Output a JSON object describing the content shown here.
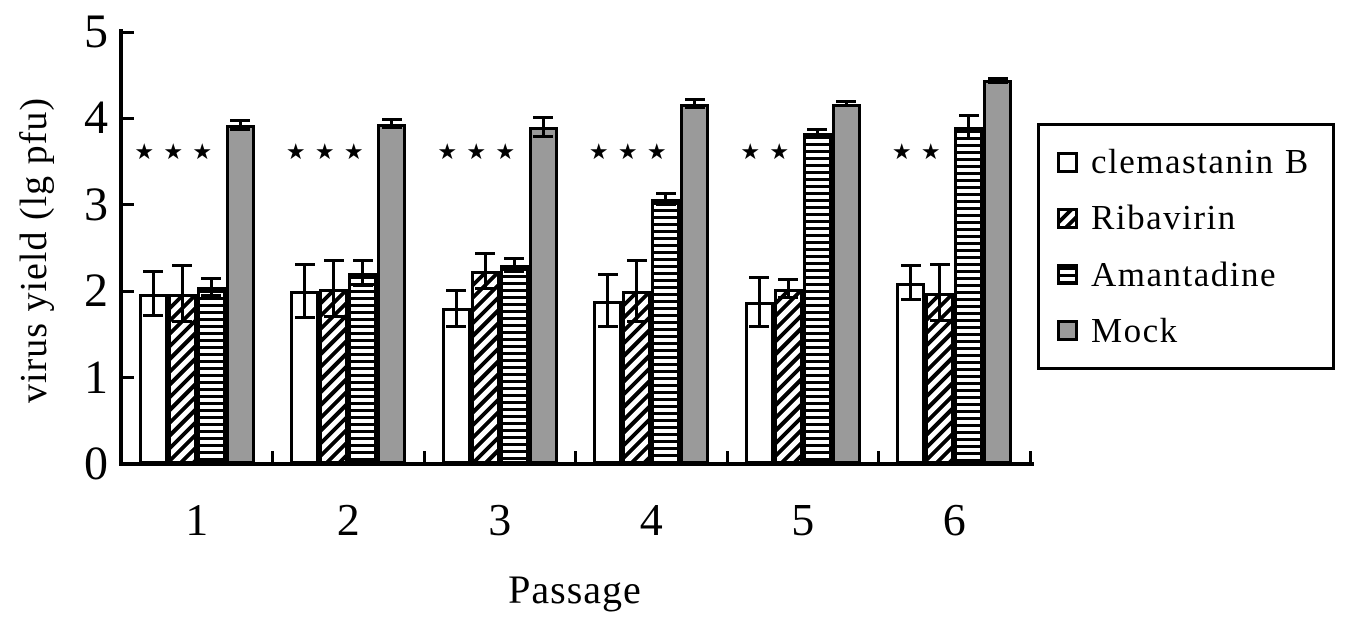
{
  "figure": {
    "background": "#ffffff",
    "bar_outline_color": "#000000",
    "mock_fill_color": "#9a9a9a"
  },
  "chart_data": {
    "type": "bar",
    "title": "",
    "xlabel": "Passage",
    "ylabel": "virus yield (lg pfu)",
    "ylim": [
      0,
      5
    ],
    "yticks": [
      0,
      1,
      2,
      3,
      4,
      5
    ],
    "categories": [
      "1",
      "2",
      "3",
      "4",
      "5",
      "6"
    ],
    "grid": false,
    "legend_position": "right",
    "error_bars": true,
    "series": [
      {
        "name": "clemastanin B",
        "pattern": "solid-white",
        "color": "#ffffff",
        "values": [
          1.97,
          2.0,
          1.8,
          1.89,
          1.87,
          2.1
        ],
        "errors": [
          0.26,
          0.31,
          0.21,
          0.31,
          0.29,
          0.2
        ]
      },
      {
        "name": "Ribavirin",
        "pattern": "diagonal-hatch",
        "color": "#ffffff",
        "values": [
          1.97,
          2.03,
          2.23,
          2.0,
          2.03,
          1.98
        ],
        "errors": [
          0.33,
          0.33,
          0.21,
          0.36,
          0.11,
          0.33
        ]
      },
      {
        "name": "Amantadine",
        "pattern": "horizontal-stripes",
        "color": "#ffffff",
        "values": [
          2.05,
          2.21,
          2.3,
          3.07,
          3.83,
          3.9
        ],
        "errors": [
          0.1,
          0.15,
          0.08,
          0.07,
          0.05,
          0.14
        ]
      },
      {
        "name": "Mock",
        "pattern": "solid-gray",
        "color": "#9a9a9a",
        "values": [
          3.92,
          3.94,
          3.9,
          4.17,
          4.17,
          4.44
        ],
        "errors": [
          0.06,
          0.05,
          0.12,
          0.05,
          0.03,
          0.03
        ]
      }
    ],
    "significance": {
      "symbol": "★",
      "y_value": 3.6,
      "stars_per_category": [
        3,
        3,
        3,
        3,
        2,
        2
      ]
    }
  }
}
